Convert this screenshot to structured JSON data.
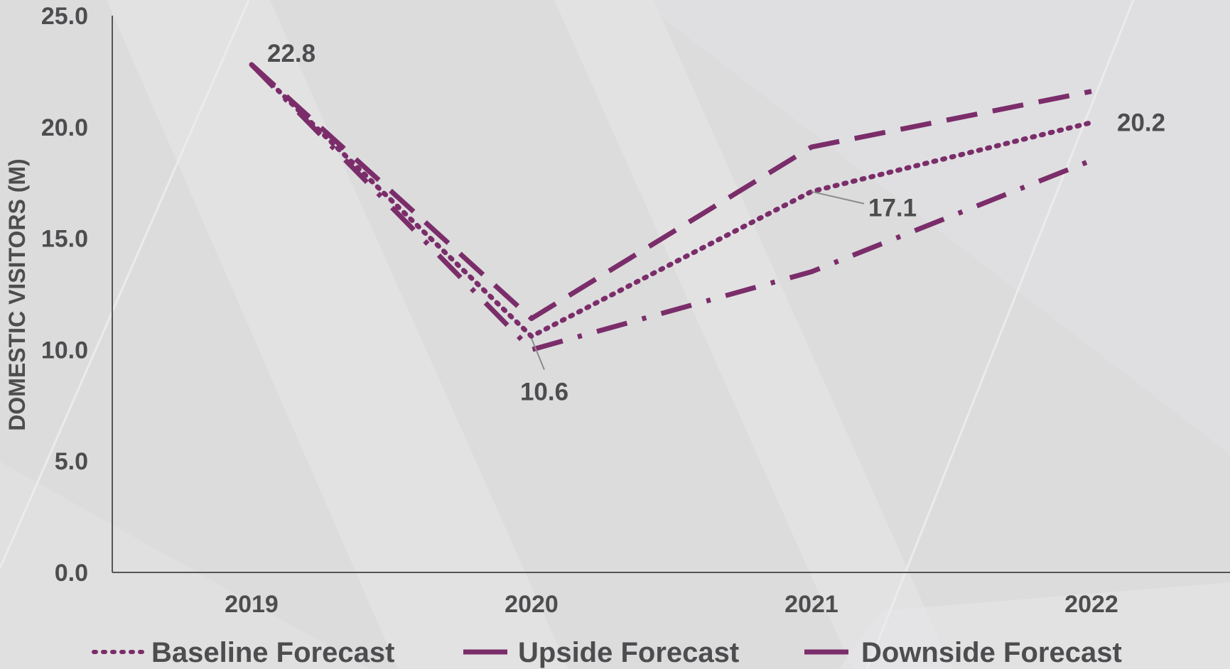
{
  "chart_data": {
    "type": "line",
    "x": [
      "2019",
      "2020",
      "2021",
      "2022"
    ],
    "ylabel": "DOMESTIC VISITORS (M)",
    "ylim": [
      0,
      25
    ],
    "yticks": [
      "0.0",
      "5.0",
      "10.0",
      "15.0",
      "20.0",
      "25.0"
    ],
    "grid": false,
    "legend_position": "bottom",
    "series": [
      {
        "name": "Baseline Forecast",
        "values": [
          22.8,
          10.6,
          17.1,
          20.2
        ],
        "style": "dotted",
        "color": "#7b2d6a"
      },
      {
        "name": "Upside Forecast",
        "values": [
          22.8,
          11.4,
          19.1,
          21.6
        ],
        "style": "dashed",
        "color": "#7b2d6a"
      },
      {
        "name": "Downside Forecast",
        "values": [
          22.8,
          10.0,
          13.5,
          18.5
        ],
        "style": "dash-dot",
        "color": "#7b2d6a"
      }
    ],
    "data_labels": [
      {
        "series": "Baseline Forecast",
        "x": "2019",
        "text": "22.8"
      },
      {
        "series": "Baseline Forecast",
        "x": "2020",
        "text": "10.6"
      },
      {
        "series": "Baseline Forecast",
        "x": "2021",
        "text": "17.1"
      },
      {
        "series": "Baseline Forecast",
        "x": "2022",
        "text": "20.2"
      }
    ]
  }
}
